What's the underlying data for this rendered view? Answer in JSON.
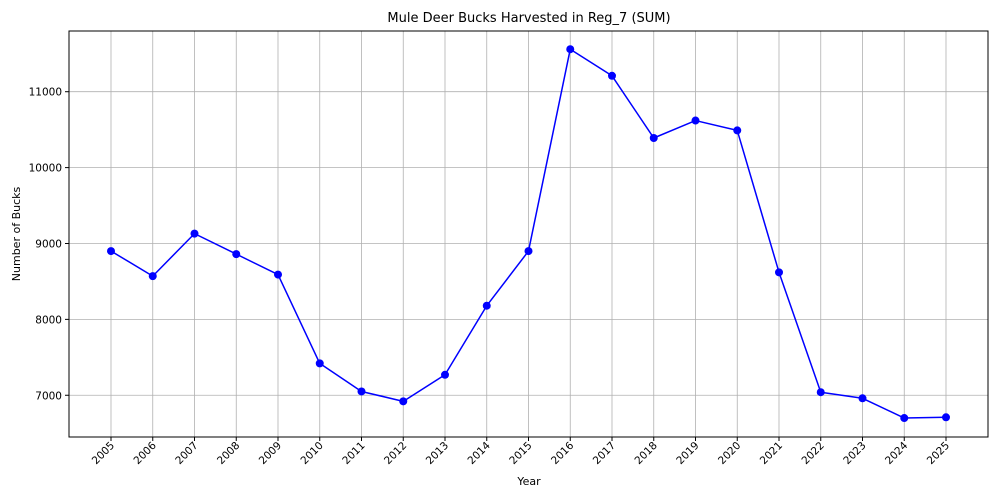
{
  "chart_data": {
    "type": "line",
    "title": "Mule Deer Bucks Harvested in Reg_7 (SUM)",
    "xlabel": "Year",
    "ylabel": "Number of Bucks",
    "categories": [
      "2005",
      "2006",
      "2007",
      "2008",
      "2009",
      "2010",
      "2011",
      "2012",
      "2013",
      "2014",
      "2015",
      "2016",
      "2017",
      "2018",
      "2019",
      "2020",
      "2021",
      "2022",
      "2023",
      "2024",
      "2025"
    ],
    "series": [
      {
        "values": [
          8900,
          8570,
          9130,
          8860,
          8590,
          7420,
          7050,
          6920,
          7270,
          8180,
          8900,
          11560,
          11210,
          10390,
          10620,
          10490,
          8620,
          7040,
          6960,
          6700,
          6710
        ],
        "color": "#0000ff"
      }
    ],
    "yticks": [
      7000,
      8000,
      9000,
      10000,
      11000
    ],
    "ylim": [
      6450,
      11800
    ],
    "grid": true,
    "marker": "circle"
  }
}
